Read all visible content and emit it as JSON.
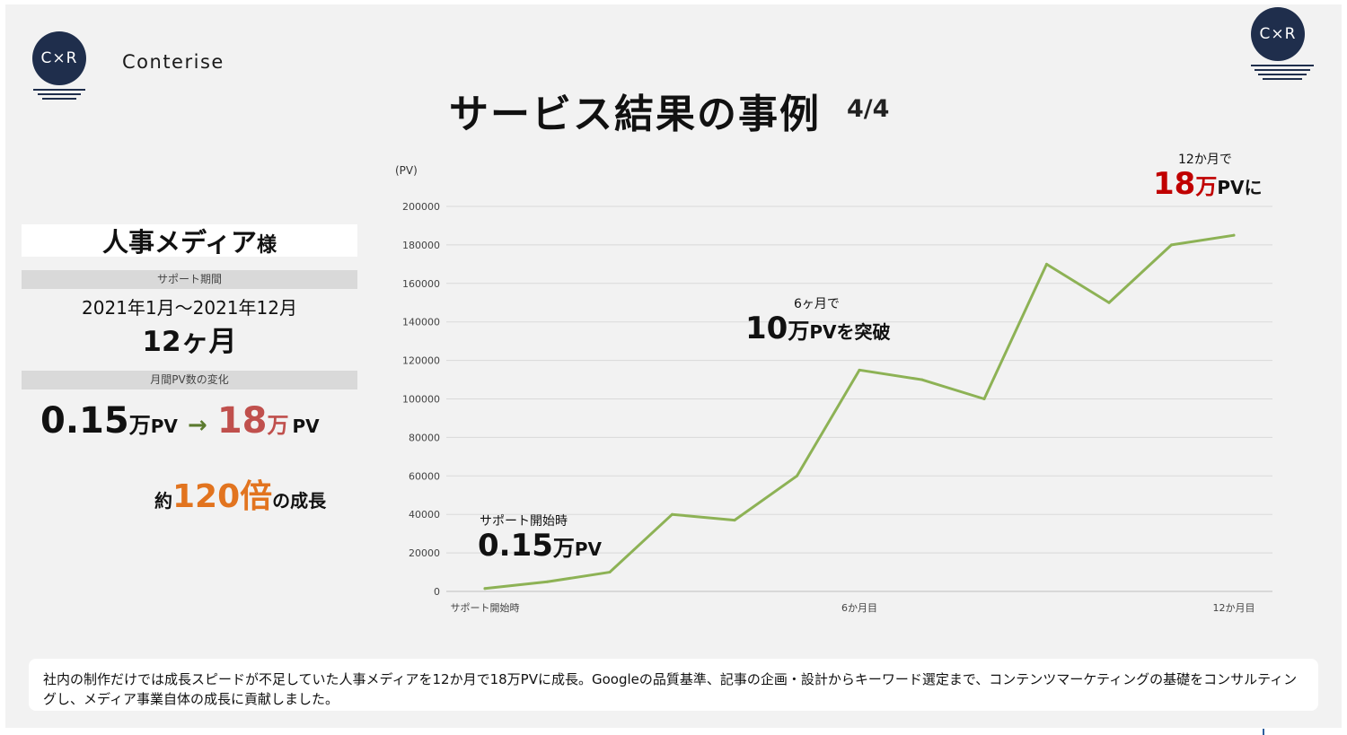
{
  "brand": {
    "logo_text": "C×R",
    "name": "Conterise"
  },
  "title": "サービス結果の事例",
  "page_indicator": "4/4",
  "left_panel": {
    "client_name": "人事メディア",
    "client_suffix": "様",
    "period_label": "サポート期間",
    "period": "2021年1月〜2021年12月",
    "duration": "12ヶ月",
    "pv_change_label": "月間PV数の変化",
    "pv_change": {
      "from_value": "0.15",
      "from_man": "万",
      "from_unit": "PV",
      "arrow": "→",
      "to_value": "18",
      "to_man": "万",
      "to_unit": "PV"
    },
    "growth": {
      "prefix": "約",
      "value": "120倍",
      "suffix": "の成長"
    }
  },
  "annotations": {
    "start": {
      "label": "サポート開始時",
      "value": "0.15",
      "man": "万",
      "unit": "PV"
    },
    "six_months": {
      "label": "6ヶ月で",
      "value": "10",
      "man": "万",
      "unit": "PVを突破"
    },
    "twelve_months": {
      "label": "12か月で",
      "value": "18",
      "man": "万",
      "unit": "PVに"
    }
  },
  "chart_data": {
    "type": "line",
    "ylabel": "(PV)",
    "ylim": [
      0,
      200000
    ],
    "yticks": [
      0,
      20000,
      40000,
      60000,
      80000,
      100000,
      120000,
      140000,
      160000,
      180000,
      200000
    ],
    "x_tick_labels": [
      "サポート開始時",
      "6か月目",
      "12か月目"
    ],
    "x_tick_indices": [
      0,
      6,
      12
    ],
    "grid": true,
    "series": [
      {
        "values": [
          1500,
          5000,
          10000,
          40000,
          37000,
          60000,
          115000,
          110000,
          100000,
          170000,
          150000,
          180000,
          185000
        ],
        "color": "#8db255"
      }
    ]
  },
  "footer": "社内の制作だけでは成長スピードが不足していた人事メディアを12か月で18万PVに成長。Googleの品質基準、記事の企画・設計からキーワード選定まで、コンテンツマーケティングの基礎をコンサルティングし、メディア事業自体の成長に貢献しました。"
}
